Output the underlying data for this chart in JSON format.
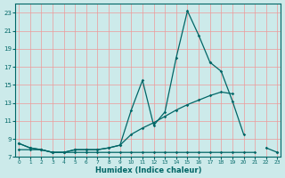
{
  "xlabel": "Humidex (Indice chaleur)",
  "bg_color": "#cceaea",
  "line_color": "#006666",
  "grid_color": "#ee9999",
  "x": [
    0,
    1,
    2,
    3,
    4,
    5,
    6,
    7,
    8,
    9,
    10,
    11,
    12,
    13,
    14,
    15,
    16,
    17,
    18,
    19,
    20,
    21,
    22,
    23
  ],
  "y_main": [
    8.5,
    8.0,
    7.8,
    7.5,
    7.5,
    7.8,
    7.8,
    7.8,
    8.0,
    8.3,
    12.2,
    15.5,
    10.5,
    12.0,
    18.0,
    23.2,
    20.5,
    17.5,
    null,
    null,
    null,
    null,
    null,
    null
  ],
  "y_upper": [
    8.5,
    8.0,
    7.8,
    7.5,
    7.5,
    7.8,
    7.8,
    7.8,
    8.0,
    8.3,
    9.5,
    10.2,
    10.8,
    11.5,
    12.2,
    12.8,
    13.3,
    13.8,
    14.2,
    14.0,
    null,
    null,
    null,
    null
  ],
  "y_lower": [
    7.8,
    7.8,
    7.8,
    7.5,
    7.5,
    7.5,
    7.5,
    7.5,
    7.5,
    7.5,
    7.5,
    7.5,
    7.5,
    7.5,
    7.5,
    7.5,
    7.5,
    7.5,
    7.5,
    7.5,
    7.5,
    7.5,
    null,
    7.5
  ],
  "y_main2": [
    null,
    null,
    null,
    null,
    null,
    null,
    null,
    null,
    null,
    null,
    null,
    null,
    null,
    null,
    null,
    null,
    null,
    17.5,
    16.5,
    13.2,
    9.5,
    null,
    8.0,
    7.5
  ],
  "xlim": [
    -0.3,
    23.3
  ],
  "ylim": [
    7,
    24
  ],
  "yticks": [
    7,
    9,
    11,
    13,
    15,
    17,
    19,
    21,
    23
  ],
  "xticks": [
    0,
    1,
    2,
    3,
    4,
    5,
    6,
    7,
    8,
    9,
    10,
    11,
    12,
    13,
    14,
    15,
    16,
    17,
    18,
    19,
    20,
    21,
    22,
    23
  ]
}
